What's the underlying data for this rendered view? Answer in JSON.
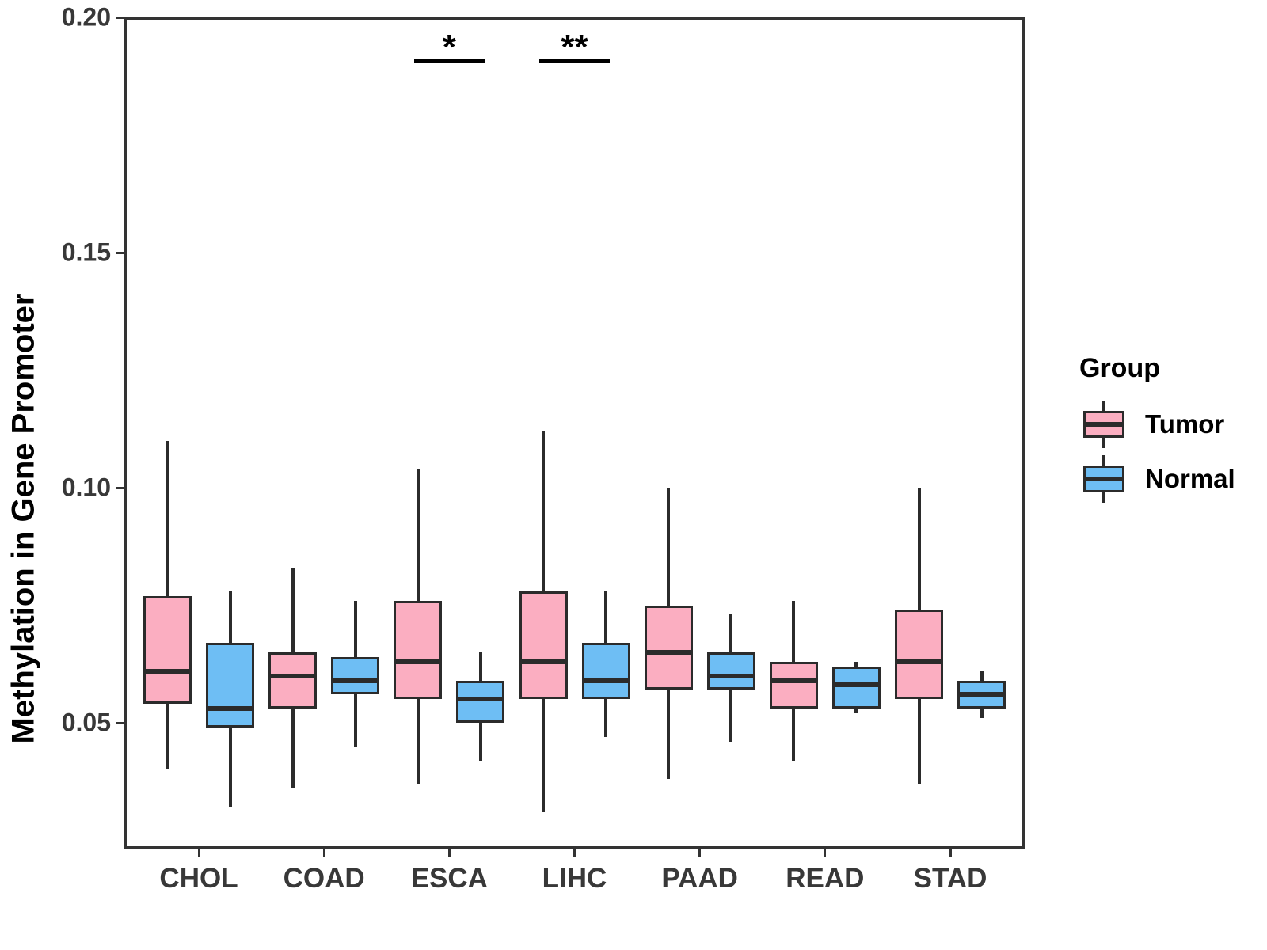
{
  "chart_data": {
    "type": "boxplot",
    "title": "",
    "xlabel": "",
    "ylabel": "Methylation in Gene Promoter",
    "categories": [
      "CHOL",
      "COAD",
      "ESCA",
      "LIHC",
      "PAAD",
      "READ",
      "STAD"
    ],
    "ylim": [
      0.023,
      0.2
    ],
    "yticks": [
      0.05,
      0.1,
      0.15,
      0.2
    ],
    "ytick_labels": [
      "0.05",
      "0.10",
      "0.15",
      "0.20"
    ],
    "grid": false,
    "legend": {
      "title": "Group",
      "position": "right",
      "entries": [
        {
          "label": "Tumor",
          "color": "#FBAEC1"
        },
        {
          "label": "Normal",
          "color": "#6EBEF4"
        }
      ]
    },
    "colors": {
      "tumor_fill": "#FBAEC1",
      "normal_fill": "#6EBEF4",
      "stroke": "#2b2b2b",
      "axis": "#333333",
      "text": "#383838"
    },
    "series": [
      {
        "name": "Tumor",
        "color": "#FBAEC1",
        "boxes": [
          {
            "category": "CHOL",
            "whisker_low": 0.04,
            "q1": 0.054,
            "median": 0.061,
            "q3": 0.077,
            "whisker_high": 0.11
          },
          {
            "category": "COAD",
            "whisker_low": 0.036,
            "q1": 0.053,
            "median": 0.06,
            "q3": 0.065,
            "whisker_high": 0.083
          },
          {
            "category": "ESCA",
            "whisker_low": 0.037,
            "q1": 0.055,
            "median": 0.063,
            "q3": 0.076,
            "whisker_high": 0.104
          },
          {
            "category": "LIHC",
            "whisker_low": 0.031,
            "q1": 0.055,
            "median": 0.063,
            "q3": 0.078,
            "whisker_high": 0.112
          },
          {
            "category": "PAAD",
            "whisker_low": 0.038,
            "q1": 0.057,
            "median": 0.065,
            "q3": 0.075,
            "whisker_high": 0.1
          },
          {
            "category": "READ",
            "whisker_low": 0.042,
            "q1": 0.053,
            "median": 0.059,
            "q3": 0.063,
            "whisker_high": 0.076
          },
          {
            "category": "STAD",
            "whisker_low": 0.037,
            "q1": 0.055,
            "median": 0.063,
            "q3": 0.074,
            "whisker_high": 0.1
          }
        ]
      },
      {
        "name": "Normal",
        "color": "#6EBEF4",
        "boxes": [
          {
            "category": "CHOL",
            "whisker_low": 0.032,
            "q1": 0.049,
            "median": 0.053,
            "q3": 0.067,
            "whisker_high": 0.078
          },
          {
            "category": "COAD",
            "whisker_low": 0.045,
            "q1": 0.056,
            "median": 0.059,
            "q3": 0.064,
            "whisker_high": 0.076
          },
          {
            "category": "ESCA",
            "whisker_low": 0.042,
            "q1": 0.05,
            "median": 0.055,
            "q3": 0.059,
            "whisker_high": 0.065
          },
          {
            "category": "LIHC",
            "whisker_low": 0.047,
            "q1": 0.055,
            "median": 0.059,
            "q3": 0.067,
            "whisker_high": 0.078
          },
          {
            "category": "PAAD",
            "whisker_low": 0.046,
            "q1": 0.057,
            "median": 0.06,
            "q3": 0.065,
            "whisker_high": 0.073
          },
          {
            "category": "READ",
            "whisker_low": 0.052,
            "q1": 0.053,
            "median": 0.058,
            "q3": 0.062,
            "whisker_high": 0.063
          },
          {
            "category": "STAD",
            "whisker_low": 0.051,
            "q1": 0.053,
            "median": 0.056,
            "q3": 0.059,
            "whisker_high": 0.061
          }
        ]
      }
    ],
    "annotations": [
      {
        "category": "ESCA",
        "label": "*"
      },
      {
        "category": "LIHC",
        "label": "**"
      }
    ]
  }
}
